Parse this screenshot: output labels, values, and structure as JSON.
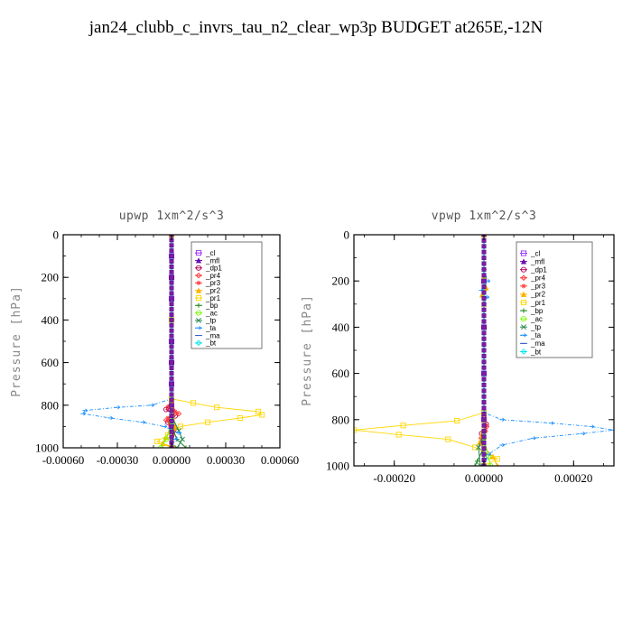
{
  "title": "jan24_clubb_c_invrs_tau_n2_clear_wp3p  BUDGET at265E,-12N",
  "chart_data": [
    {
      "type": "line",
      "panel_title": "upwp   1xm^2/s^3",
      "ylabel": "Pressure [hPa]",
      "ylim": [
        0,
        1000
      ],
      "y_inverted": true,
      "yticks": [
        0,
        200,
        400,
        600,
        800,
        1000
      ],
      "xlim": [
        -0.0006,
        0.0006
      ],
      "xticks": [
        -0.0006,
        -0.0003,
        0,
        0.0003,
        0.0006
      ],
      "xtick_labels": [
        "-0.00060",
        "-0.00030",
        "0.00000",
        "0.00030",
        "0.00060"
      ],
      "legend_position": "top-right",
      "series": [
        {
          "name": "_cl",
          "color": "#9b30ff",
          "marker": "square",
          "points": [
            [
              0,
              0
            ],
            [
              0,
              100
            ],
            [
              0,
              200
            ],
            [
              0,
              300
            ],
            [
              0,
              400
            ],
            [
              0,
              500
            ],
            [
              0,
              600
            ],
            [
              0,
              700
            ],
            [
              0,
              800
            ],
            [
              0,
              900
            ],
            [
              0,
              1000
            ]
          ]
        },
        {
          "name": "_mfl",
          "color": "#6a0dad",
          "marker": "triangle",
          "points": [
            [
              0,
              0
            ],
            [
              0,
              100
            ],
            [
              0,
              200
            ],
            [
              0,
              300
            ],
            [
              0,
              400
            ],
            [
              0,
              500
            ],
            [
              0,
              600
            ],
            [
              0,
              700
            ],
            [
              0,
              800
            ],
            [
              0,
              900
            ],
            [
              0,
              1000
            ]
          ]
        },
        {
          "name": "_dp1",
          "color": "#b0005a",
          "marker": "circle",
          "points": [
            [
              0,
              0
            ],
            [
              0,
              200
            ],
            [
              0,
              400
            ],
            [
              0,
              600
            ],
            [
              0,
              780
            ],
            [
              -3e-05,
              820
            ],
            [
              2e-05,
              850
            ],
            [
              -2e-05,
              880
            ],
            [
              1e-05,
              920
            ],
            [
              0,
              1000
            ]
          ]
        },
        {
          "name": "_pr4",
          "color": "#ff3030",
          "marker": "diamond",
          "points": [
            [
              0,
              780
            ],
            [
              -2e-05,
              810
            ],
            [
              4e-05,
              840
            ],
            [
              -3e-05,
              870
            ],
            [
              2e-05,
              910
            ],
            [
              0,
              1000
            ]
          ]
        },
        {
          "name": "_pr3",
          "color": "#ff4040",
          "marker": "star",
          "points": [
            [
              0,
              780
            ],
            [
              2e-05,
              830
            ],
            [
              -2e-05,
              860
            ],
            [
              0,
              1000
            ]
          ]
        },
        {
          "name": "_pr2",
          "color": "#ffb000",
          "marker": "triangle",
          "points": [
            [
              0,
              0
            ],
            [
              0,
              780
            ],
            [
              2e-05,
              900
            ],
            [
              -3e-05,
              950
            ],
            [
              -5e-05,
              980
            ],
            [
              2e-05,
              1000
            ]
          ]
        },
        {
          "name": "_pr1",
          "color": "#ffd700",
          "marker": "square",
          "points": [
            [
              0,
              0
            ],
            [
              0,
              400
            ],
            [
              0,
              770
            ],
            [
              0.00012,
              790
            ],
            [
              0.00025,
              810
            ],
            [
              0.00048,
              830
            ],
            [
              0.0005,
              845
            ],
            [
              0.00038,
              860
            ],
            [
              0.0002,
              880
            ],
            [
              5e-05,
              900
            ],
            [
              -2e-05,
              940
            ],
            [
              -8e-05,
              970
            ],
            [
              0,
              1000
            ]
          ]
        },
        {
          "name": "_bp",
          "color": "#228b22",
          "marker": "plus",
          "points": [
            [
              0,
              900
            ],
            [
              3e-05,
              960
            ],
            [
              8e-05,
              1000
            ]
          ]
        },
        {
          "name": "_ac",
          "color": "#7cfc00",
          "marker": "circle",
          "points": [
            [
              0,
              880
            ],
            [
              -3e-05,
              960
            ],
            [
              -6e-05,
              1000
            ]
          ]
        },
        {
          "name": "_tp",
          "color": "#2e8b57",
          "marker": "x",
          "points": [
            [
              0,
              850
            ],
            [
              4e-05,
              920
            ],
            [
              6e-05,
              960
            ],
            [
              3e-05,
              1000
            ]
          ]
        },
        {
          "name": "_ta",
          "color": "#1e90ff",
          "marker": "arrow",
          "points": [
            [
              0,
              0
            ],
            [
              0,
              400
            ],
            [
              0,
              770
            ],
            [
              -0.00011,
              800
            ],
            [
              -0.0003,
              810
            ],
            [
              -0.00048,
              825
            ],
            [
              -0.00049,
              840
            ],
            [
              -0.00034,
              860
            ],
            [
              -0.00016,
              880
            ],
            [
              -4e-05,
              900
            ],
            [
              4e-05,
              930
            ],
            [
              2e-05,
              960
            ],
            [
              0,
              1000
            ]
          ]
        },
        {
          "name": "_ma",
          "color": "#3a5fcd",
          "marker": "dash",
          "points": [
            [
              0,
              0
            ],
            [
              0,
              1000
            ]
          ]
        },
        {
          "name": "_bt",
          "color": "#00e5ee",
          "marker": "diamond",
          "points": [
            [
              0,
              0
            ],
            [
              0,
              1000
            ]
          ]
        }
      ]
    },
    {
      "type": "line",
      "panel_title": "vpwp   1xm^2/s^3",
      "ylabel": "Pressure [hPa]",
      "ylim": [
        0,
        1000
      ],
      "y_inverted": true,
      "yticks": [
        0,
        200,
        400,
        600,
        800,
        1000
      ],
      "xlim": [
        -0.00029,
        0.00029
      ],
      "xticks": [
        -0.0002,
        0,
        0.0002
      ],
      "xtick_labels": [
        "-0.00020",
        "0.00000",
        "0.00020"
      ],
      "legend_position": "top-right",
      "series": [
        {
          "name": "_cl",
          "color": "#9b30ff",
          "marker": "square",
          "points": [
            [
              0,
              0
            ],
            [
              0,
              200
            ],
            [
              0,
              400
            ],
            [
              0,
              600
            ],
            [
              0,
              800
            ],
            [
              0,
              1000
            ]
          ]
        },
        {
          "name": "_mfl",
          "color": "#6a0dad",
          "marker": "triangle",
          "points": [
            [
              0,
              0
            ],
            [
              0,
              200
            ],
            [
              0,
              400
            ],
            [
              0,
              600
            ],
            [
              0,
              800
            ],
            [
              0,
              1000
            ]
          ]
        },
        {
          "name": "_dp1",
          "color": "#b0005a",
          "marker": "circle",
          "points": [
            [
              0,
              0
            ],
            [
              0,
              400
            ],
            [
              0,
              780
            ],
            [
              5e-06,
              820
            ],
            [
              -5e-06,
              860
            ],
            [
              0,
              1000
            ]
          ]
        },
        {
          "name": "_pr4",
          "color": "#ff3030",
          "marker": "diamond",
          "points": [
            [
              0,
              780
            ],
            [
              6e-06,
              830
            ],
            [
              -6e-06,
              880
            ],
            [
              0,
              1000
            ]
          ]
        },
        {
          "name": "_pr3",
          "color": "#ff4040",
          "marker": "star",
          "points": [
            [
              0,
              800
            ],
            [
              4e-06,
              850
            ],
            [
              0,
              1000
            ]
          ]
        },
        {
          "name": "_pr2",
          "color": "#ffb000",
          "marker": "triangle",
          "points": [
            [
              0,
              0
            ],
            [
              0,
              180
            ],
            [
              5e-06,
              230
            ],
            [
              -4e-06,
              260
            ],
            [
              0,
              300
            ],
            [
              0,
              800
            ],
            [
              -1e-05,
              900
            ],
            [
              2e-05,
              960
            ],
            [
              3e-05,
              1000
            ]
          ]
        },
        {
          "name": "_pr1",
          "color": "#ffd700",
          "marker": "square",
          "points": [
            [
              0,
              0
            ],
            [
              0,
              770
            ],
            [
              -6e-05,
              805
            ],
            [
              -0.00018,
              825
            ],
            [
              -0.00029,
              845
            ],
            [
              -0.00019,
              865
            ],
            [
              -8e-05,
              885
            ],
            [
              -2e-05,
              920
            ],
            [
              3e-05,
              970
            ],
            [
              0,
              1000
            ]
          ]
        },
        {
          "name": "_bp",
          "color": "#228b22",
          "marker": "plus",
          "points": [
            [
              0,
              920
            ],
            [
              -1.5e-05,
              980
            ],
            [
              -2e-05,
              1000
            ]
          ]
        },
        {
          "name": "_ac",
          "color": "#7cfc00",
          "marker": "circle",
          "points": [
            [
              0,
              880
            ],
            [
              1e-05,
              960
            ],
            [
              1.5e-05,
              1000
            ]
          ]
        },
        {
          "name": "_tp",
          "color": "#2e8b57",
          "marker": "x",
          "points": [
            [
              0,
              860
            ],
            [
              -1.2e-05,
              920
            ],
            [
              -8e-06,
              1000
            ]
          ]
        },
        {
          "name": "_ta",
          "color": "#1e90ff",
          "marker": "arrow",
          "points": [
            [
              0,
              0
            ],
            [
              0,
              150
            ],
            [
              8e-06,
              200
            ],
            [
              -6e-06,
              240
            ],
            [
              6e-06,
              270
            ],
            [
              0,
              300
            ],
            [
              0,
              770
            ],
            [
              4e-05,
              800
            ],
            [
              0.00015,
              815
            ],
            [
              0.00024,
              830
            ],
            [
              0.00029,
              845
            ],
            [
              0.00022,
              860
            ],
            [
              0.00011,
              880
            ],
            [
              4e-05,
              910
            ],
            [
              1e-05,
              950
            ],
            [
              0,
              1000
            ]
          ]
        },
        {
          "name": "_ma",
          "color": "#3a5fcd",
          "marker": "dash",
          "points": [
            [
              0,
              0
            ],
            [
              0,
              1000
            ]
          ]
        },
        {
          "name": "_bt",
          "color": "#00e5ee",
          "marker": "diamond",
          "points": [
            [
              0,
              0
            ],
            [
              0,
              1000
            ]
          ]
        }
      ]
    }
  ]
}
